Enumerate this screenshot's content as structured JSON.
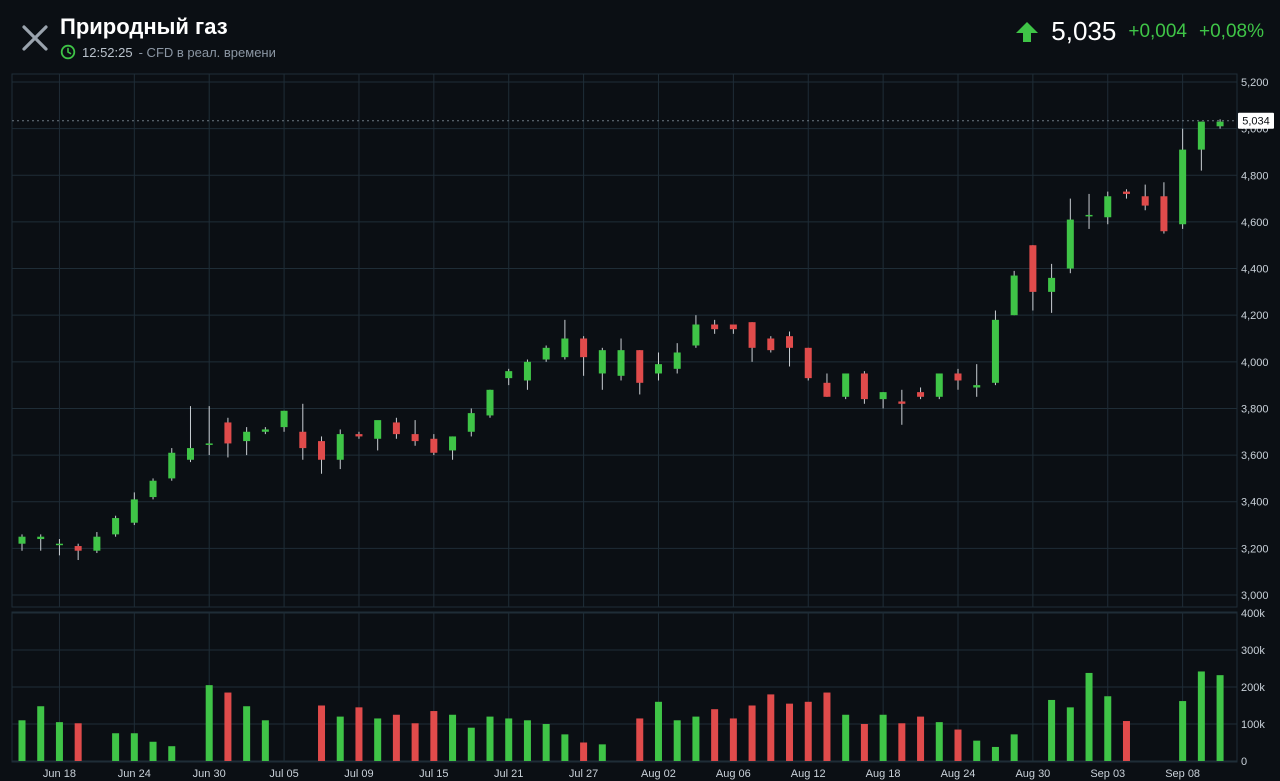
{
  "header": {
    "title": "Природный газ",
    "time": "12:52:25",
    "subtitle_rest": "- CFD в реал. времени",
    "price": "5,035",
    "change_abs": "+0,004",
    "change_pct": "+0,08%",
    "last_price_label": "5,034"
  },
  "colors": {
    "up": "#3fc447",
    "down": "#e04b4b",
    "background": "#0b0f14",
    "grid": "#1f2d37"
  },
  "icons": {
    "close": "close-icon",
    "clock": "clock-icon",
    "up_arrow": "arrow-up-icon"
  },
  "chart_data": {
    "type": "candlestick",
    "price_axis": {
      "ticks": [
        "5,200",
        "5,000",
        "4,800",
        "4,600",
        "4,400",
        "4,200",
        "4,000",
        "3,800",
        "3,600",
        "3,400",
        "3,200",
        "3,000"
      ],
      "ylim": [
        3.0,
        5.2
      ]
    },
    "volume_axis": {
      "ticks": [
        "400k",
        "300k",
        "200k",
        "100k",
        "0"
      ],
      "ylim": [
        0,
        400000
      ]
    },
    "date_ticks": [
      {
        "label": "Jun 18",
        "i": 2
      },
      {
        "label": "Jun 24",
        "i": 6
      },
      {
        "label": "Jun 30",
        "i": 10
      },
      {
        "label": "Jul 05",
        "i": 14
      },
      {
        "label": "Jul 09",
        "i": 18
      },
      {
        "label": "Jul 15",
        "i": 22
      },
      {
        "label": "Jul 21",
        "i": 26
      },
      {
        "label": "Jul 27",
        "i": 30
      },
      {
        "label": "Aug 02",
        "i": 34
      },
      {
        "label": "Aug 06",
        "i": 38
      },
      {
        "label": "Aug 12",
        "i": 42
      },
      {
        "label": "Aug 18",
        "i": 46
      },
      {
        "label": "Aug 24",
        "i": 50
      },
      {
        "label": "Aug 30",
        "i": 54
      },
      {
        "label": "Sep 03",
        "i": 58
      },
      {
        "label": "Sep 08",
        "i": 62
      }
    ],
    "candles": [
      [
        3.22,
        3.26,
        3.19,
        3.25
      ],
      [
        3.24,
        3.26,
        3.19,
        3.25
      ],
      [
        3.22,
        3.24,
        3.17,
        3.22
      ],
      [
        3.21,
        3.22,
        3.15,
        3.19
      ],
      [
        3.19,
        3.27,
        3.18,
        3.25
      ],
      [
        3.26,
        3.34,
        3.25,
        3.33
      ],
      [
        3.31,
        3.44,
        3.3,
        3.41
      ],
      [
        3.42,
        3.5,
        3.41,
        3.49
      ],
      [
        3.5,
        3.63,
        3.49,
        3.61
      ],
      [
        3.58,
        3.81,
        3.57,
        3.63
      ],
      [
        3.65,
        3.81,
        3.6,
        3.65
      ],
      [
        3.74,
        3.76,
        3.59,
        3.65
      ],
      [
        3.66,
        3.72,
        3.6,
        3.7
      ],
      [
        3.7,
        3.72,
        3.69,
        3.71
      ],
      [
        3.72,
        3.79,
        3.7,
        3.79
      ],
      [
        3.7,
        3.82,
        3.58,
        3.63
      ],
      [
        3.66,
        3.68,
        3.52,
        3.58
      ],
      [
        3.58,
        3.71,
        3.54,
        3.69
      ],
      [
        3.69,
        3.7,
        3.67,
        3.68
      ],
      [
        3.67,
        3.74,
        3.62,
        3.75
      ],
      [
        3.74,
        3.76,
        3.67,
        3.69
      ],
      [
        3.69,
        3.75,
        3.64,
        3.66
      ],
      [
        3.67,
        3.69,
        3.6,
        3.61
      ],
      [
        3.62,
        3.68,
        3.58,
        3.68
      ],
      [
        3.7,
        3.8,
        3.68,
        3.78
      ],
      [
        3.77,
        3.88,
        3.76,
        3.88
      ],
      [
        3.93,
        3.97,
        3.9,
        3.96
      ],
      [
        3.92,
        4.01,
        3.88,
        4.0
      ],
      [
        4.01,
        4.07,
        4.0,
        4.06
      ],
      [
        4.02,
        4.18,
        4.01,
        4.1
      ],
      [
        4.1,
        4.11,
        3.94,
        4.02
      ],
      [
        3.95,
        4.06,
        3.88,
        4.05
      ],
      [
        3.94,
        4.1,
        3.92,
        4.05
      ],
      [
        4.05,
        4.05,
        3.86,
        3.91
      ],
      [
        3.95,
        4.04,
        3.92,
        3.99
      ],
      [
        3.97,
        4.08,
        3.95,
        4.04
      ],
      [
        4.07,
        4.2,
        4.06,
        4.16
      ],
      [
        4.16,
        4.18,
        4.12,
        4.14
      ],
      [
        4.16,
        4.16,
        4.12,
        4.14
      ],
      [
        4.17,
        4.17,
        4.0,
        4.06
      ],
      [
        4.1,
        4.11,
        4.04,
        4.05
      ],
      [
        4.11,
        4.13,
        3.98,
        4.06
      ],
      [
        4.06,
        4.06,
        3.92,
        3.93
      ],
      [
        3.91,
        3.95,
        3.85,
        3.85
      ],
      [
        3.85,
        3.95,
        3.84,
        3.95
      ],
      [
        3.95,
        3.96,
        3.82,
        3.84
      ],
      [
        3.84,
        3.87,
        3.8,
        3.87
      ],
      [
        3.83,
        3.88,
        3.73,
        3.82
      ],
      [
        3.87,
        3.89,
        3.84,
        3.85
      ],
      [
        3.85,
        3.95,
        3.84,
        3.95
      ],
      [
        3.95,
        3.97,
        3.88,
        3.92
      ],
      [
        3.89,
        3.99,
        3.85,
        3.9
      ],
      [
        3.91,
        4.22,
        3.9,
        4.18
      ],
      [
        4.2,
        4.39,
        4.2,
        4.37
      ],
      [
        4.5,
        4.5,
        4.22,
        4.3
      ],
      [
        4.3,
        4.42,
        4.21,
        4.36
      ],
      [
        4.4,
        4.7,
        4.38,
        4.61
      ],
      [
        4.63,
        4.72,
        4.57,
        4.63
      ],
      [
        4.62,
        4.73,
        4.59,
        4.71
      ],
      [
        4.73,
        4.74,
        4.7,
        4.72
      ],
      [
        4.71,
        4.76,
        4.65,
        4.67
      ],
      [
        4.71,
        4.77,
        4.55,
        4.56
      ],
      [
        4.59,
        5.0,
        4.57,
        4.91
      ],
      [
        4.91,
        5.03,
        4.82,
        5.03
      ],
      [
        5.01,
        5.04,
        5.0,
        5.03
      ]
    ],
    "volumes": [
      110000,
      148000,
      105000,
      102000,
      0,
      75000,
      75000,
      52000,
      40000,
      0,
      205000,
      185000,
      148000,
      110000,
      0,
      0,
      150000,
      120000,
      145000,
      115000,
      125000,
      102000,
      135000,
      125000,
      90000,
      120000,
      115000,
      110000,
      100000,
      72000,
      50000,
      45000,
      0,
      115000,
      160000,
      110000,
      120000,
      140000,
      115000,
      150000,
      180000,
      155000,
      160000,
      185000,
      125000,
      100000,
      125000,
      102000,
      120000,
      105000,
      85000,
      55000,
      38000,
      72000,
      0,
      165000,
      145000,
      238000,
      175000,
      108000,
      0,
      0,
      162000,
      242000,
      232000
    ]
  }
}
